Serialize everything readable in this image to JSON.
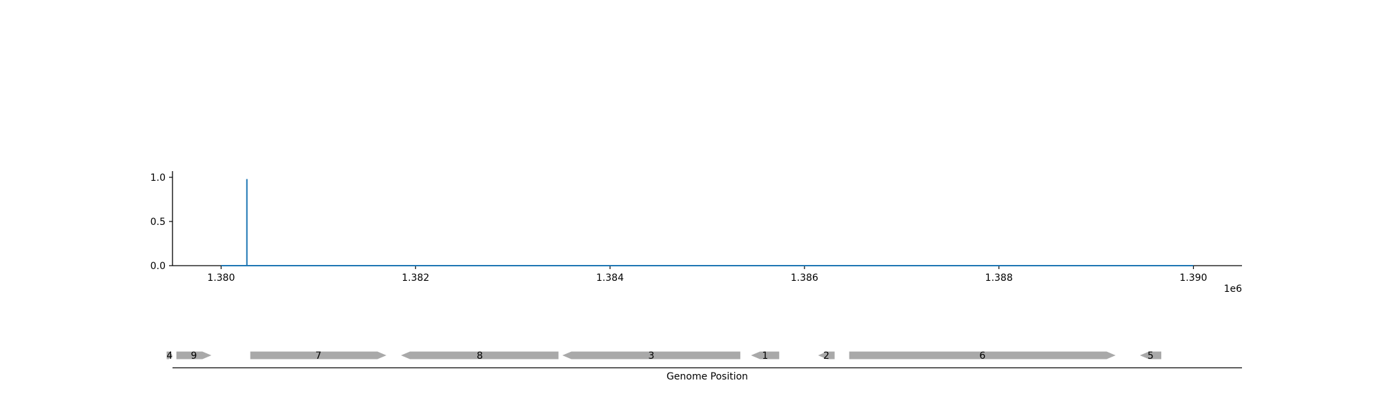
{
  "chart_data": [
    {
      "type": "line",
      "title": "",
      "xlabel": "",
      "ylabel": "",
      "x_offset_label": "1e6",
      "xlim": [
        1379500,
        1390500
      ],
      "ylim": [
        0,
        1.07
      ],
      "x_ticks": [
        1380000,
        1382000,
        1384000,
        1386000,
        1388000,
        1390000
      ],
      "x_tick_labels": [
        "1.380",
        "1.382",
        "1.384",
        "1.386",
        "1.388",
        "1.390"
      ],
      "y_ticks": [
        0,
        0.5,
        1.0
      ],
      "y_tick_labels": [
        "0.0",
        "0.5",
        "1.0"
      ],
      "grid": false,
      "color": "#1f77b4",
      "series": [
        {
          "x": [
            1380000,
            1380265,
            1380265,
            1380265,
            1390000
          ],
          "y": [
            0,
            0,
            0.98,
            0,
            0
          ]
        }
      ]
    },
    {
      "type": "gene-track",
      "xlabel": "Genome Position",
      "xlim": [
        1379500,
        1390500
      ],
      "color": "#a9a9a9",
      "genes": [
        {
          "label": "4",
          "start": 1379440,
          "end": 1379500,
          "strand": 1
        },
        {
          "label": "9",
          "start": 1379540,
          "end": 1379900,
          "strand": 1
        },
        {
          "label": "7",
          "start": 1380300,
          "end": 1381700,
          "strand": 1
        },
        {
          "label": "8",
          "start": 1381850,
          "end": 1383470,
          "strand": -1
        },
        {
          "label": "3",
          "start": 1383510,
          "end": 1385340,
          "strand": -1
        },
        {
          "label": "1",
          "start": 1385450,
          "end": 1385740,
          "strand": -1
        },
        {
          "label": "2",
          "start": 1386140,
          "end": 1386310,
          "strand": -1
        },
        {
          "label": "6",
          "start": 1386460,
          "end": 1389200,
          "strand": 1
        },
        {
          "label": "5",
          "start": 1389450,
          "end": 1389670,
          "strand": -1
        }
      ]
    }
  ]
}
